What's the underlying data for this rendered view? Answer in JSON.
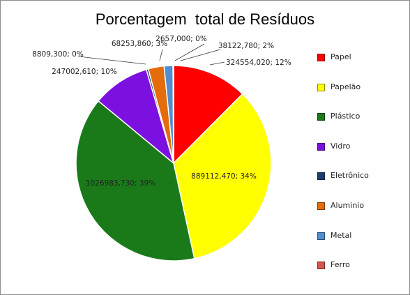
{
  "chart_data": {
    "type": "pie",
    "title": "Porcentagem  total de Resíduos",
    "legend_position": "right",
    "slices": [
      {
        "name": "Papel",
        "value": 324554.02,
        "label": "324554,020; 12%",
        "color": "#ff0000"
      },
      {
        "name": "Papelão",
        "value": 889112.47,
        "label": "889112,470; 34%",
        "color": "#ffff00"
      },
      {
        "name": "Plástico",
        "value": 1026983.73,
        "label": "1026983,730; 39%",
        "color": "#1a7a1a"
      },
      {
        "name": "Vidro",
        "value": 247002.61,
        "label": "247002,610; 10%",
        "color": "#7b10e0"
      },
      {
        "name": "Eletrônico",
        "value": 8809.3,
        "label": "8809,300; 0%",
        "color": "#1f3b70"
      },
      {
        "name": "Aluminio",
        "value": 68253.86,
        "label": "68253,860; 3%",
        "color": "#e46c0a"
      },
      {
        "name": "Metal",
        "value": 38122.78,
        "label": "38122,780; 2%",
        "color": "#4f8fd0"
      },
      {
        "name": "Ferro",
        "value": 2657.0,
        "label": "2657,000; 0%",
        "color": "#d9534f"
      }
    ]
  }
}
